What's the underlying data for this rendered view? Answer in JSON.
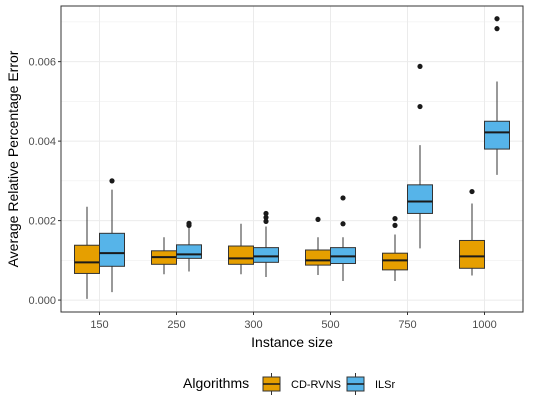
{
  "chart_data": {
    "type": "boxplot",
    "title": "",
    "xlabel": "Instance size",
    "ylabel": "Average Relative Percentage Error",
    "ylim": [
      -0.0003,
      0.0074
    ],
    "y_ticks": [
      0,
      0.002,
      0.004,
      0.006
    ],
    "y_tick_labels": [
      "0.000",
      "0.002",
      "0.004",
      "0.006"
    ],
    "categories": [
      "150",
      "250",
      "300",
      "500",
      "750",
      "1000"
    ],
    "grid": true,
    "legend": {
      "title": "Algorithms",
      "position": "bottom"
    },
    "series": [
      {
        "name": "CD-RVNS",
        "color": "#E69F00",
        "boxes": [
          {
            "whisker_low": 3e-05,
            "q1": 0.00067,
            "median": 0.00095,
            "q3": 0.00138,
            "whisker_high": 0.00235,
            "outliers": []
          },
          {
            "whisker_low": 0.00065,
            "q1": 0.0009,
            "median": 0.00108,
            "q3": 0.00124,
            "whisker_high": 0.00158,
            "outliers": []
          },
          {
            "whisker_low": 0.00065,
            "q1": 0.0009,
            "median": 0.00105,
            "q3": 0.00136,
            "whisker_high": 0.00192,
            "outliers": []
          },
          {
            "whisker_low": 0.00063,
            "q1": 0.00088,
            "median": 0.001,
            "q3": 0.00126,
            "whisker_high": 0.00158,
            "outliers": [
              0.00203
            ]
          },
          {
            "whisker_low": 0.00048,
            "q1": 0.00076,
            "median": 0.001,
            "q3": 0.00118,
            "whisker_high": 0.00165,
            "outliers": [
              0.00188,
              0.00205
            ]
          },
          {
            "whisker_low": 0.00062,
            "q1": 0.0008,
            "median": 0.0011,
            "q3": 0.0015,
            "whisker_high": 0.00243,
            "outliers": [
              0.00273
            ]
          }
        ]
      },
      {
        "name": "ILSr",
        "color": "#56B4E9",
        "boxes": [
          {
            "whisker_low": 0.0002,
            "q1": 0.00085,
            "median": 0.00118,
            "q3": 0.00168,
            "whisker_high": 0.00278,
            "outliers": [
              0.003
            ]
          },
          {
            "whisker_low": 0.00072,
            "q1": 0.00105,
            "median": 0.00115,
            "q3": 0.00139,
            "whisker_high": 0.00182,
            "outliers": [
              0.00188,
              0.00193
            ]
          },
          {
            "whisker_low": 0.00058,
            "q1": 0.00095,
            "median": 0.0011,
            "q3": 0.00132,
            "whisker_high": 0.00185,
            "outliers": [
              0.00198,
              0.00208,
              0.00218
            ]
          },
          {
            "whisker_low": 0.00048,
            "q1": 0.00092,
            "median": 0.0011,
            "q3": 0.00132,
            "whisker_high": 0.00158,
            "outliers": [
              0.00192,
              0.00257
            ]
          },
          {
            "whisker_low": 0.0013,
            "q1": 0.00218,
            "median": 0.00248,
            "q3": 0.0029,
            "whisker_high": 0.0039,
            "outliers": [
              0.00487,
              0.00588
            ]
          },
          {
            "whisker_low": 0.00315,
            "q1": 0.0038,
            "median": 0.00422,
            "q3": 0.0045,
            "whisker_high": 0.0055,
            "outliers": [
              0.00683,
              0.00708
            ]
          }
        ]
      }
    ]
  }
}
